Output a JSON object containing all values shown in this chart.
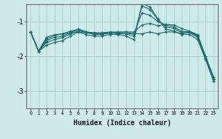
{
  "xlabel": "Humidex (Indice chaleur)",
  "background_color": "#ceeaea",
  "grid_color": "#aad0d0",
  "line_color": "#1a6b6b",
  "x_values": [
    0,
    1,
    2,
    3,
    4,
    5,
    6,
    7,
    8,
    9,
    10,
    11,
    12,
    13,
    14,
    15,
    16,
    17,
    18,
    19,
    20,
    21,
    22,
    23
  ],
  "series": [
    [
      -1.3,
      -1.85,
      -1.45,
      -1.38,
      -1.35,
      -1.32,
      -1.3,
      -1.32,
      -1.35,
      -1.35,
      -1.32,
      -1.35,
      -1.35,
      -1.35,
      -1.35,
      -1.3,
      -1.35,
      -1.3,
      -1.3,
      -1.35,
      -1.3,
      -1.4,
      -2.05,
      -2.65
    ],
    [
      -1.3,
      -1.85,
      -1.5,
      -1.4,
      -1.35,
      -1.28,
      -1.22,
      -1.3,
      -1.32,
      -1.32,
      -1.3,
      -1.3,
      -1.3,
      -1.3,
      -1.1,
      -1.05,
      -1.12,
      -1.08,
      -1.1,
      -1.2,
      -1.28,
      -1.38,
      -2.0,
      -2.6
    ],
    [
      -1.3,
      -1.85,
      -1.55,
      -1.45,
      -1.42,
      -1.32,
      -1.22,
      -1.3,
      -1.35,
      -1.35,
      -1.32,
      -1.32,
      -1.3,
      -1.35,
      -0.75,
      -0.82,
      -1.0,
      -1.1,
      -1.15,
      -1.28,
      -1.3,
      -1.42,
      -2.05,
      -2.65
    ],
    [
      -1.3,
      -1.85,
      -1.6,
      -1.52,
      -1.46,
      -1.36,
      -1.26,
      -1.32,
      -1.37,
      -1.37,
      -1.33,
      -1.33,
      -1.35,
      -1.42,
      -0.55,
      -0.65,
      -0.95,
      -1.15,
      -1.2,
      -1.32,
      -1.32,
      -1.45,
      -2.05,
      -2.65
    ],
    [
      -1.3,
      -1.85,
      -1.68,
      -1.6,
      -1.55,
      -1.42,
      -1.3,
      -1.38,
      -1.42,
      -1.42,
      -1.37,
      -1.37,
      -1.42,
      -1.52,
      -0.48,
      -0.58,
      -0.92,
      -1.22,
      -1.27,
      -1.37,
      -1.37,
      -1.52,
      -2.1,
      -2.72
    ]
  ],
  "ylim": [
    -3.5,
    -0.5
  ],
  "xlim": [
    -0.5,
    23.5
  ],
  "yticks": [
    -3,
    -2,
    -1
  ],
  "xticks": [
    0,
    1,
    2,
    3,
    4,
    5,
    6,
    7,
    8,
    9,
    10,
    11,
    12,
    13,
    14,
    15,
    16,
    17,
    18,
    19,
    20,
    21,
    22,
    23
  ]
}
